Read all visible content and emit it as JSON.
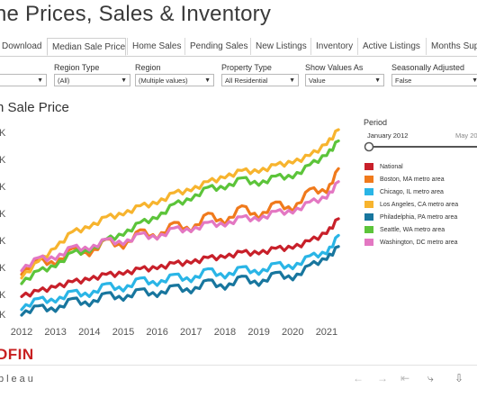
{
  "header": {
    "title": "ne Prices, Sales & Inventory"
  },
  "tabs": [
    {
      "label": "Download"
    },
    {
      "label": "Median Sale Price",
      "active": true
    },
    {
      "label": "Home Sales"
    },
    {
      "label": "Pending Sales"
    },
    {
      "label": "New Listings"
    },
    {
      "label": "Inventory"
    },
    {
      "label": "Active Listings"
    },
    {
      "label": "Months Sup"
    }
  ],
  "filters": [
    {
      "label": "",
      "value": ""
    },
    {
      "label": "Region Type",
      "value": "(All)"
    },
    {
      "label": "Region",
      "value": "(Multiple values)"
    },
    {
      "label": "Property Type",
      "value": "All Residential"
    },
    {
      "label": "Show Values As",
      "value": "Value"
    },
    {
      "label": "Seasonally Adjusted",
      "value": "False"
    }
  ],
  "chart_title": "n Sale Price",
  "period": {
    "title": "Period",
    "start": "January 2012",
    "end": "May 20"
  },
  "legend": [
    {
      "name": "National",
      "color": "#c8202a"
    },
    {
      "name": "Boston, MA metro area",
      "color": "#f07a1c"
    },
    {
      "name": "Chicago, IL metro area",
      "color": "#2ab5e6"
    },
    {
      "name": "Los Angeles, CA metro area",
      "color": "#f7b42e"
    },
    {
      "name": "Philadelphia, PA metro area",
      "color": "#18769e"
    },
    {
      "name": "Seattle, WA metro area",
      "color": "#5cc43a"
    },
    {
      "name": "Washington, DC metro area",
      "color": "#e377c2"
    }
  ],
  "branding": {
    "redfin": "DFIN",
    "tableau": "bleau"
  },
  "chart_data": {
    "type": "line",
    "x_label_ticks": [
      "2012",
      "2013",
      "2014",
      "2015",
      "2016",
      "2017",
      "2018",
      "2019",
      "2020",
      "2021"
    ],
    "y_tick_labels": [
      "K",
      "K",
      "K",
      "K",
      "K",
      "K",
      "K",
      "K"
    ],
    "x_range": [
      2012.0,
      2021.4
    ],
    "y_range": [
      0,
      1
    ],
    "series": [
      {
        "name": "National",
        "color": "#c8202a",
        "points": [
          [
            2012.0,
            0.1
          ],
          [
            2012.5,
            0.13
          ],
          [
            2013.0,
            0.15
          ],
          [
            2013.5,
            0.18
          ],
          [
            2014.0,
            0.19
          ],
          [
            2014.5,
            0.22
          ],
          [
            2015.0,
            0.22
          ],
          [
            2015.5,
            0.25
          ],
          [
            2016.0,
            0.25
          ],
          [
            2016.5,
            0.28
          ],
          [
            2017.0,
            0.28
          ],
          [
            2017.5,
            0.31
          ],
          [
            2018.0,
            0.31
          ],
          [
            2018.5,
            0.34
          ],
          [
            2019.0,
            0.33
          ],
          [
            2019.5,
            0.36
          ],
          [
            2020.0,
            0.36
          ],
          [
            2020.5,
            0.4
          ],
          [
            2021.0,
            0.44
          ],
          [
            2021.35,
            0.52
          ]
        ]
      },
      {
        "name": "Boston, MA metro area",
        "color": "#f07a1c",
        "points": [
          [
            2012.0,
            0.22
          ],
          [
            2012.5,
            0.3
          ],
          [
            2013.0,
            0.27
          ],
          [
            2013.5,
            0.36
          ],
          [
            2014.0,
            0.32
          ],
          [
            2014.5,
            0.41
          ],
          [
            2015.0,
            0.36
          ],
          [
            2015.5,
            0.46
          ],
          [
            2016.0,
            0.41
          ],
          [
            2016.5,
            0.5
          ],
          [
            2017.0,
            0.45
          ],
          [
            2017.5,
            0.55
          ],
          [
            2018.0,
            0.49
          ],
          [
            2018.5,
            0.59
          ],
          [
            2019.0,
            0.52
          ],
          [
            2019.5,
            0.61
          ],
          [
            2020.0,
            0.56
          ],
          [
            2020.5,
            0.68
          ],
          [
            2021.0,
            0.66
          ],
          [
            2021.35,
            0.79
          ]
        ]
      },
      {
        "name": "Chicago, IL metro area",
        "color": "#2ab5e6",
        "points": [
          [
            2012.0,
            0.03
          ],
          [
            2012.5,
            0.09
          ],
          [
            2013.0,
            0.07
          ],
          [
            2013.5,
            0.13
          ],
          [
            2014.0,
            0.1
          ],
          [
            2014.5,
            0.17
          ],
          [
            2015.0,
            0.13
          ],
          [
            2015.5,
            0.2
          ],
          [
            2016.0,
            0.16
          ],
          [
            2016.5,
            0.22
          ],
          [
            2017.0,
            0.18
          ],
          [
            2017.5,
            0.25
          ],
          [
            2018.0,
            0.2
          ],
          [
            2018.5,
            0.26
          ],
          [
            2019.0,
            0.22
          ],
          [
            2019.5,
            0.28
          ],
          [
            2020.0,
            0.25
          ],
          [
            2020.5,
            0.32
          ],
          [
            2021.0,
            0.33
          ],
          [
            2021.35,
            0.43
          ]
        ]
      },
      {
        "name": "Los Angeles, CA metro area",
        "color": "#f7b42e",
        "points": [
          [
            2012.0,
            0.2
          ],
          [
            2012.5,
            0.29
          ],
          [
            2013.0,
            0.36
          ],
          [
            2013.5,
            0.45
          ],
          [
            2014.0,
            0.47
          ],
          [
            2014.5,
            0.53
          ],
          [
            2015.0,
            0.54
          ],
          [
            2015.5,
            0.59
          ],
          [
            2016.0,
            0.6
          ],
          [
            2016.5,
            0.66
          ],
          [
            2017.0,
            0.67
          ],
          [
            2017.5,
            0.72
          ],
          [
            2018.0,
            0.74
          ],
          [
            2018.5,
            0.78
          ],
          [
            2019.0,
            0.77
          ],
          [
            2019.5,
            0.81
          ],
          [
            2020.0,
            0.82
          ],
          [
            2020.5,
            0.86
          ],
          [
            2021.0,
            0.92
          ],
          [
            2021.35,
            1.0
          ]
        ]
      },
      {
        "name": "Philadelphia, PA metro area",
        "color": "#18769e",
        "points": [
          [
            2012.0,
            0.0
          ],
          [
            2012.5,
            0.05
          ],
          [
            2013.0,
            0.02
          ],
          [
            2013.5,
            0.09
          ],
          [
            2014.0,
            0.05
          ],
          [
            2014.5,
            0.12
          ],
          [
            2015.0,
            0.08
          ],
          [
            2015.5,
            0.14
          ],
          [
            2016.0,
            0.1
          ],
          [
            2016.5,
            0.16
          ],
          [
            2017.0,
            0.12
          ],
          [
            2017.5,
            0.19
          ],
          [
            2018.0,
            0.14
          ],
          [
            2018.5,
            0.21
          ],
          [
            2019.0,
            0.16
          ],
          [
            2019.5,
            0.23
          ],
          [
            2020.0,
            0.19
          ],
          [
            2020.5,
            0.27
          ],
          [
            2021.0,
            0.3
          ],
          [
            2021.35,
            0.37
          ]
        ]
      },
      {
        "name": "Seattle, WA metro area",
        "color": "#5cc43a",
        "points": [
          [
            2012.0,
            0.17
          ],
          [
            2012.5,
            0.24
          ],
          [
            2013.0,
            0.26
          ],
          [
            2013.5,
            0.34
          ],
          [
            2014.0,
            0.34
          ],
          [
            2014.5,
            0.41
          ],
          [
            2015.0,
            0.43
          ],
          [
            2015.5,
            0.5
          ],
          [
            2016.0,
            0.52
          ],
          [
            2016.5,
            0.6
          ],
          [
            2017.0,
            0.62
          ],
          [
            2017.5,
            0.69
          ],
          [
            2018.0,
            0.68
          ],
          [
            2018.5,
            0.74
          ],
          [
            2019.0,
            0.7
          ],
          [
            2019.5,
            0.75
          ],
          [
            2020.0,
            0.74
          ],
          [
            2020.5,
            0.81
          ],
          [
            2021.0,
            0.86
          ],
          [
            2021.35,
            0.94
          ]
        ]
      },
      {
        "name": "Washington, DC metro area",
        "color": "#e377c2",
        "points": [
          [
            2012.0,
            0.24
          ],
          [
            2012.5,
            0.31
          ],
          [
            2013.0,
            0.3
          ],
          [
            2013.5,
            0.37
          ],
          [
            2014.0,
            0.35
          ],
          [
            2014.5,
            0.41
          ],
          [
            2015.0,
            0.38
          ],
          [
            2015.5,
            0.44
          ],
          [
            2016.0,
            0.41
          ],
          [
            2016.5,
            0.47
          ],
          [
            2017.0,
            0.45
          ],
          [
            2017.5,
            0.5
          ],
          [
            2018.0,
            0.48
          ],
          [
            2018.5,
            0.53
          ],
          [
            2019.0,
            0.51
          ],
          [
            2019.5,
            0.56
          ],
          [
            2020.0,
            0.55
          ],
          [
            2020.5,
            0.61
          ],
          [
            2021.0,
            0.63
          ],
          [
            2021.35,
            0.72
          ]
        ]
      }
    ]
  }
}
